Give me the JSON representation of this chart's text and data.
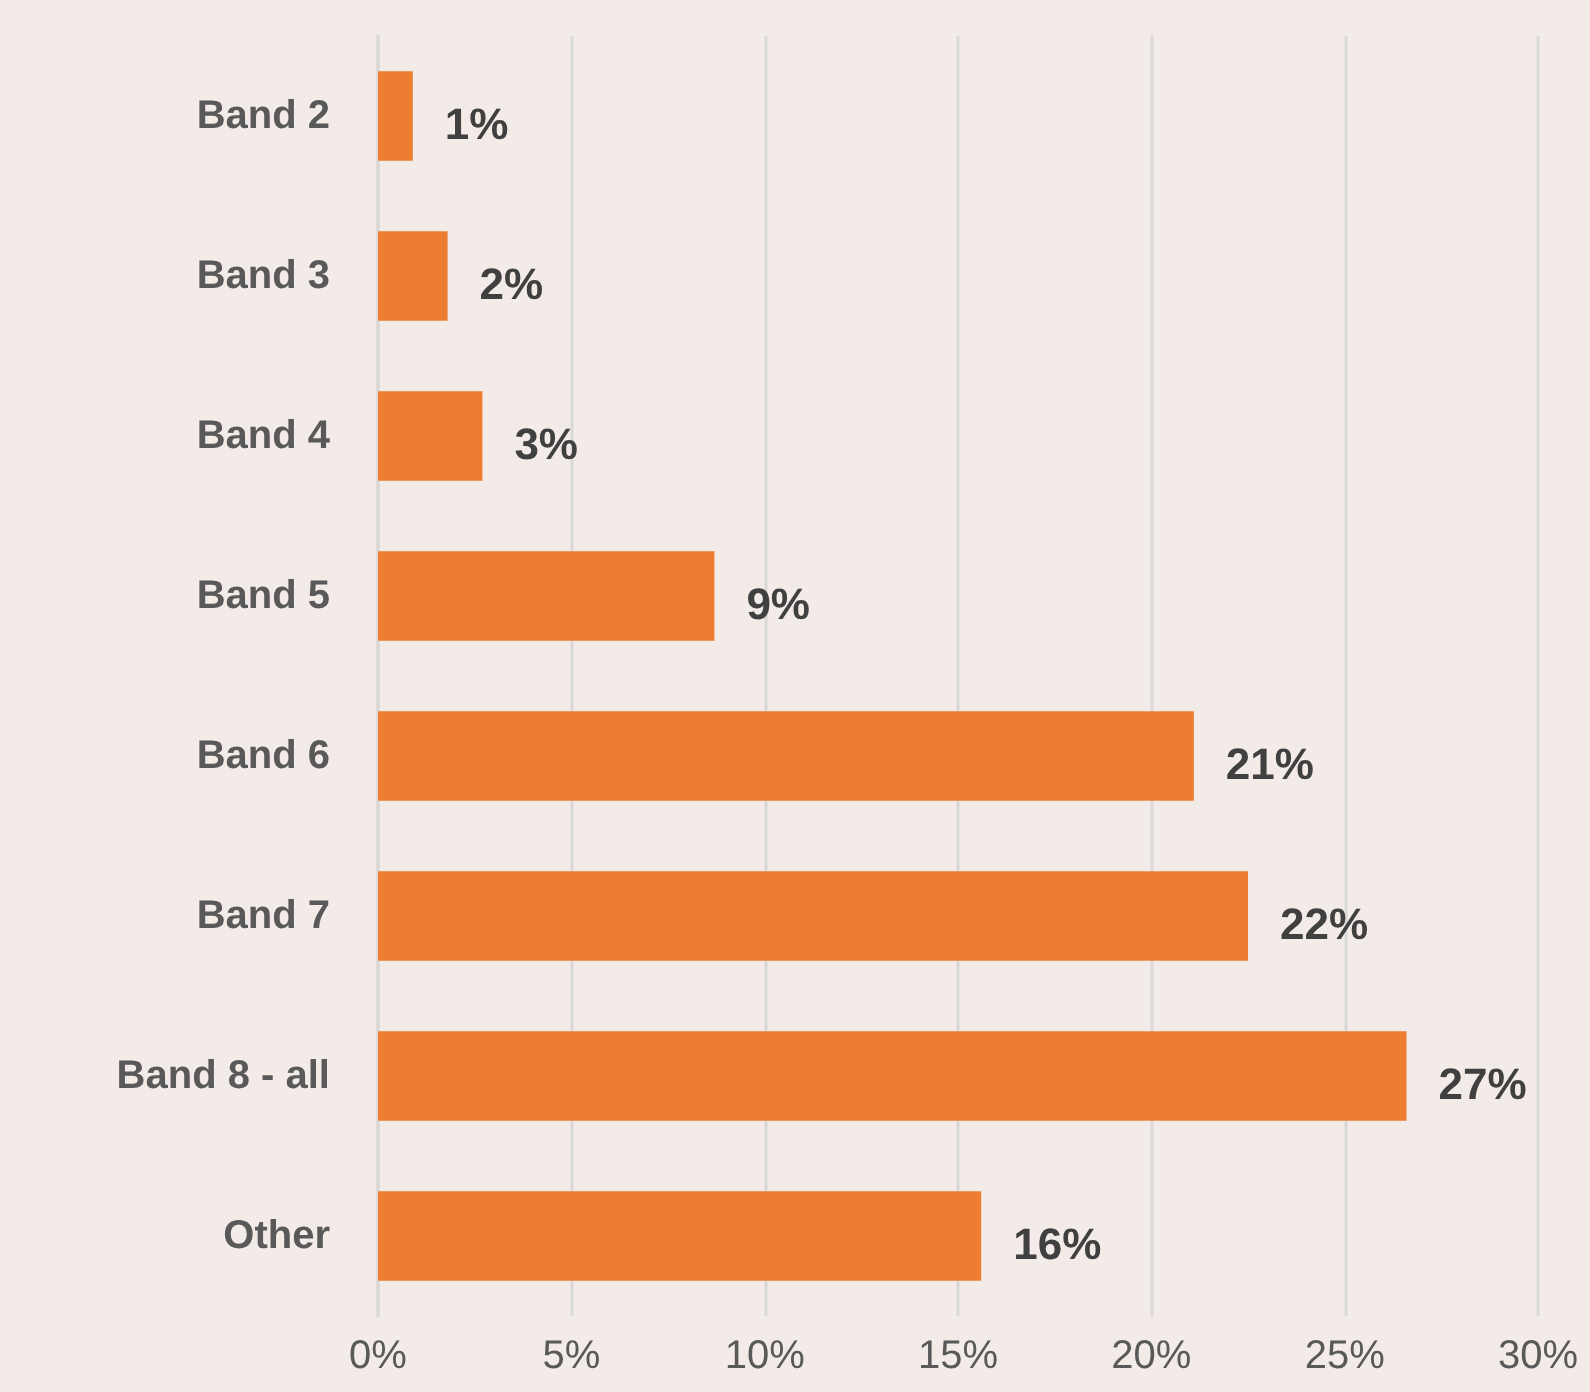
{
  "chart_data": {
    "type": "bar",
    "orientation": "horizontal",
    "categories": [
      "Band 2",
      "Band 3",
      "Band 4",
      "Band 5",
      "Band 6",
      "Band 7",
      "Band 8 - all",
      "Other"
    ],
    "values": [
      0.9,
      1.8,
      2.7,
      8.7,
      21.1,
      22.5,
      26.6,
      15.6
    ],
    "value_labels": [
      "1%",
      "2%",
      "3%",
      "9%",
      "21%",
      "22%",
      "27%",
      "16%"
    ],
    "color": "#ed7d31",
    "xlim": [
      0,
      30
    ],
    "xticks": [
      {
        "value": 0,
        "label": "0%"
      },
      {
        "value": 5,
        "label": "5%"
      },
      {
        "value": 10,
        "label": "10%"
      },
      {
        "value": 15,
        "label": "15%"
      },
      {
        "value": 20,
        "label": "20%"
      },
      {
        "value": 25,
        "label": "25%"
      },
      {
        "value": 30,
        "label": "30%"
      }
    ],
    "grid": "x"
  }
}
